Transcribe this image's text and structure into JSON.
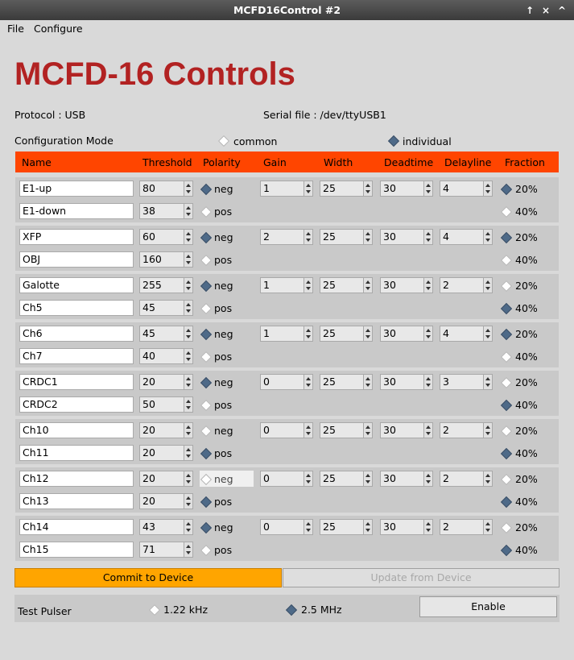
{
  "window": {
    "title": "MCFD16Control #2",
    "buttons": [
      "↑",
      "×",
      "^"
    ]
  },
  "menu": [
    "File",
    "Configure"
  ],
  "app_title": "MCFD-16 Controls",
  "protocol": "Protocol : USB",
  "serial": "Serial file : /dev/ttyUSB1",
  "config_mode": {
    "label": "Configuration Mode",
    "common": "common",
    "individual": "individual",
    "selected": "individual"
  },
  "headers": [
    "Name",
    "Threshold",
    "Polarity",
    "Gain",
    "Width",
    "Deadtime",
    "Delayline",
    "Fraction"
  ],
  "polarity_labels": [
    "neg",
    "pos"
  ],
  "fraction_labels": [
    "20%",
    "40%"
  ],
  "groups": [
    {
      "names": [
        "E1-up",
        "E1-down"
      ],
      "thresholds": [
        "80",
        "38"
      ],
      "polarity": "neg",
      "gain": "1",
      "width": "25",
      "deadtime": "30",
      "delay": "4",
      "fraction": "20%"
    },
    {
      "names": [
        "XFP",
        "OBJ"
      ],
      "thresholds": [
        "60",
        "160"
      ],
      "polarity": "neg",
      "gain": "2",
      "width": "25",
      "deadtime": "30",
      "delay": "4",
      "fraction": "20%"
    },
    {
      "names": [
        "Galotte",
        "Ch5"
      ],
      "thresholds": [
        "255",
        "45"
      ],
      "polarity": "neg",
      "gain": "1",
      "width": "25",
      "deadtime": "30",
      "delay": "2",
      "fraction": "40%"
    },
    {
      "names": [
        "Ch6",
        "Ch7"
      ],
      "thresholds": [
        "45",
        "40"
      ],
      "polarity": "neg",
      "gain": "1",
      "width": "25",
      "deadtime": "30",
      "delay": "4",
      "fraction": "20%"
    },
    {
      "names": [
        "CRDC1",
        "CRDC2"
      ],
      "thresholds": [
        "20",
        "50"
      ],
      "polarity": "neg",
      "gain": "0",
      "width": "25",
      "deadtime": "30",
      "delay": "3",
      "fraction": "40%"
    },
    {
      "names": [
        "Ch10",
        "Ch11"
      ],
      "thresholds": [
        "20",
        "20"
      ],
      "polarity": "pos",
      "gain": "0",
      "width": "25",
      "deadtime": "30",
      "delay": "2",
      "fraction": "40%"
    },
    {
      "names": [
        "Ch12",
        "Ch13"
      ],
      "thresholds": [
        "20",
        "20"
      ],
      "polarity": "pos",
      "gain": "0",
      "width": "25",
      "deadtime": "30",
      "delay": "2",
      "fraction": "40%"
    },
    {
      "names": [
        "Ch14",
        "Ch15"
      ],
      "thresholds": [
        "43",
        "71"
      ],
      "polarity": "neg",
      "gain": "0",
      "width": "25",
      "deadtime": "30",
      "delay": "2",
      "fraction": "40%"
    }
  ],
  "buttons": {
    "commit": "Commit to Device",
    "update": "Update from Device",
    "enable": "Enable"
  },
  "pulser": {
    "label": "Test Pulser",
    "opt1": "1.22 kHz",
    "opt2": "2.5 MHz",
    "selected": "2.5 MHz"
  },
  "colors": {
    "header": "#ff4500",
    "title": "#b22222",
    "commit": "#ffa500",
    "radio_on": "#4e6a88"
  }
}
